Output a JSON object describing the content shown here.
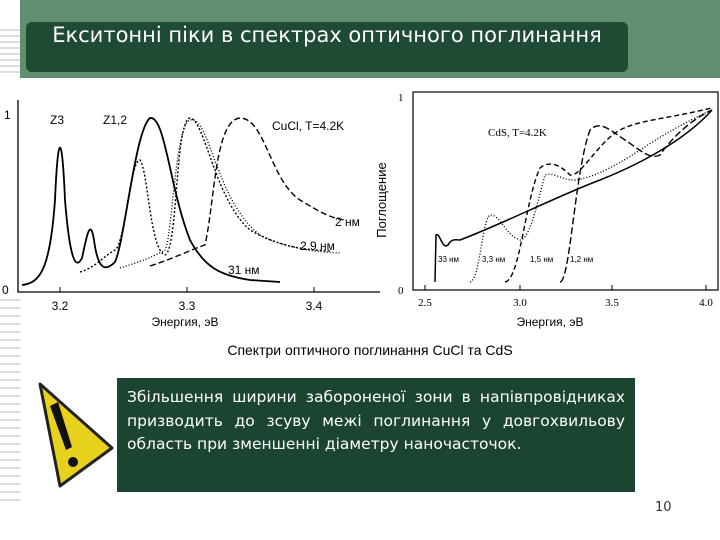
{
  "header": {
    "title": "Екситонні піки в спектрах оптичного поглинання"
  },
  "figure_left": {
    "y_labels": [
      "1",
      "0"
    ],
    "x_labels": [
      "3.2",
      "3.3",
      "3.4"
    ],
    "x_label": "Энергия, эВ",
    "annotations": [
      "Z3",
      "Z1,2",
      "CuCl, T=4.2K",
      "2 нм",
      "2.9 нм",
      "31 нм"
    ]
  },
  "figure_right": {
    "y_labels": [
      "1",
      "0"
    ],
    "x_labels": [
      "2.5",
      "3.0",
      "3.5",
      "4.0"
    ],
    "x_label": "Энергия, эВ",
    "y_label": "Поглощение",
    "annotations": [
      "CdS, T=4.2K",
      "33 нм",
      "3,3 нм",
      "1,5 нм",
      "1,2 нм"
    ]
  },
  "caption": "Спектри оптичного поглинання CuCl та CdS",
  "note": "Збільшення ширини забороненої зони в напівпровідниках призводить до зсуву межі поглинання у довгохвильову область при зменшенні діаметру наночасточок.",
  "page_number": "10"
}
